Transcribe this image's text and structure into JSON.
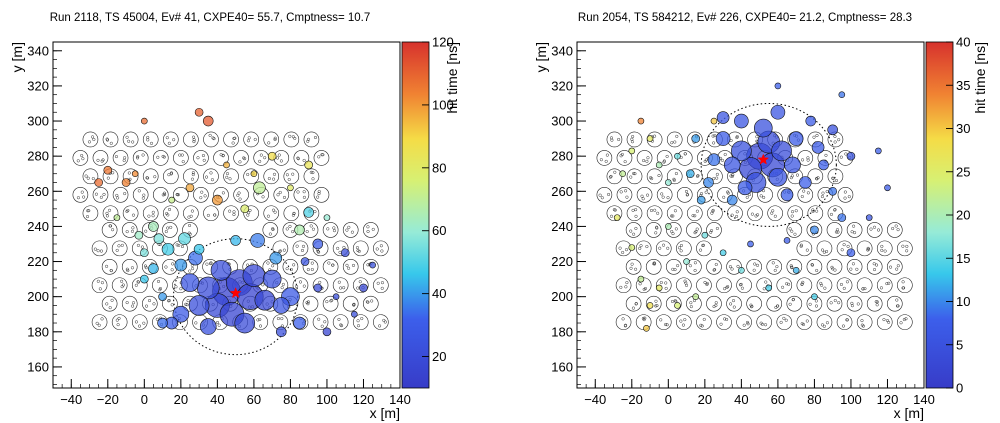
{
  "chart_data": [
    {
      "type": "scatter",
      "title": "Run 2118, TS 45004, Ev# 41, CXPE40= 55.7, Cmptness= 10.7",
      "xlabel": "x [m]",
      "ylabel": "y [m]",
      "xlim": [
        -50,
        140
      ],
      "ylim": [
        148,
        345
      ],
      "xticks": [
        "−40",
        "−20",
        "0",
        "20",
        "40",
        "60",
        "80",
        "100",
        "120",
        "140"
      ],
      "yticks": [
        "160",
        "180",
        "200",
        "220",
        "240",
        "260",
        "280",
        "300",
        "320",
        "340"
      ],
      "colorbar": {
        "label": "hit time [ns]",
        "min": 10,
        "max": 120,
        "ticks": [
          "20",
          "40",
          "60",
          "80",
          "100",
          "120"
        ]
      },
      "core": {
        "x": 50,
        "y": 202
      },
      "ellipse": {
        "cx": 50,
        "cy": 200,
        "rx": 34,
        "ry": 33
      },
      "hits": [
        {
          "x": 45,
          "y": 203,
          "t": 14,
          "s": 14
        },
        {
          "x": 52,
          "y": 208,
          "t": 16,
          "s": 13
        },
        {
          "x": 58,
          "y": 200,
          "t": 15,
          "s": 13
        },
        {
          "x": 40,
          "y": 195,
          "t": 18,
          "s": 12
        },
        {
          "x": 48,
          "y": 190,
          "t": 16,
          "s": 12
        },
        {
          "x": 60,
          "y": 212,
          "t": 18,
          "s": 11
        },
        {
          "x": 35,
          "y": 205,
          "t": 20,
          "s": 11
        },
        {
          "x": 66,
          "y": 198,
          "t": 19,
          "s": 10
        },
        {
          "x": 30,
          "y": 195,
          "t": 22,
          "s": 10
        },
        {
          "x": 55,
          "y": 185,
          "t": 20,
          "s": 10
        },
        {
          "x": 70,
          "y": 210,
          "t": 24,
          "s": 9
        },
        {
          "x": 25,
          "y": 208,
          "t": 26,
          "s": 9
        },
        {
          "x": 42,
          "y": 215,
          "t": 22,
          "s": 10
        },
        {
          "x": 75,
          "y": 195,
          "t": 26,
          "s": 8
        },
        {
          "x": 80,
          "y": 200,
          "t": 28,
          "s": 9
        },
        {
          "x": 20,
          "y": 190,
          "t": 28,
          "s": 8
        },
        {
          "x": 62,
          "y": 232,
          "t": 36,
          "s": 7
        },
        {
          "x": 35,
          "y": 183,
          "t": 24,
          "s": 8
        },
        {
          "x": 15,
          "y": 185,
          "t": 30,
          "s": 6
        },
        {
          "x": 85,
          "y": 185,
          "t": 32,
          "s": 6
        },
        {
          "x": 10,
          "y": 185,
          "t": 34,
          "s": 5
        },
        {
          "x": 28,
          "y": 222,
          "t": 34,
          "s": 7
        },
        {
          "x": 20,
          "y": 218,
          "t": 40,
          "s": 6
        },
        {
          "x": 13,
          "y": 227,
          "t": 48,
          "s": 6
        },
        {
          "x": 5,
          "y": 216,
          "t": 44,
          "s": 5
        },
        {
          "x": 22,
          "y": 233,
          "t": 52,
          "s": 6
        },
        {
          "x": 30,
          "y": 227,
          "t": 46,
          "s": 5
        },
        {
          "x": 63,
          "y": 262,
          "t": 70,
          "s": 6
        },
        {
          "x": 90,
          "y": 248,
          "t": 50,
          "s": 5
        },
        {
          "x": 85,
          "y": 238,
          "t": 66,
          "s": 5
        },
        {
          "x": 72,
          "y": 222,
          "t": 40,
          "s": 6
        },
        {
          "x": 95,
          "y": 230,
          "t": 30,
          "s": 5
        },
        {
          "x": 50,
          "y": 232,
          "t": 44,
          "s": 5
        },
        {
          "x": 8,
          "y": 233,
          "t": 56,
          "s": 5
        },
        {
          "x": -3,
          "y": 235,
          "t": 62,
          "s": 4
        },
        {
          "x": 5,
          "y": 240,
          "t": 64,
          "s": 5
        },
        {
          "x": 0,
          "y": 225,
          "t": 56,
          "s": 4
        },
        {
          "x": 40,
          "y": 255,
          "t": 100,
          "s": 5
        },
        {
          "x": 25,
          "y": 262,
          "t": 98,
          "s": 4
        },
        {
          "x": -25,
          "y": 265,
          "t": 108,
          "s": 4
        },
        {
          "x": -20,
          "y": 272,
          "t": 106,
          "s": 4
        },
        {
          "x": -10,
          "y": 265,
          "t": 104,
          "s": 4
        },
        {
          "x": 35,
          "y": 300,
          "t": 112,
          "s": 5
        },
        {
          "x": 30,
          "y": 305,
          "t": 110,
          "s": 4
        },
        {
          "x": 0,
          "y": 300,
          "t": 108,
          "s": 3
        },
        {
          "x": -5,
          "y": 270,
          "t": 102,
          "s": 3
        },
        {
          "x": 70,
          "y": 280,
          "t": 88,
          "s": 4
        },
        {
          "x": 90,
          "y": 275,
          "t": 84,
          "s": 4
        },
        {
          "x": 110,
          "y": 225,
          "t": 20,
          "s": 4
        },
        {
          "x": 120,
          "y": 205,
          "t": 18,
          "s": 4
        },
        {
          "x": 100,
          "y": 180,
          "t": 16,
          "s": 4
        },
        {
          "x": 115,
          "y": 190,
          "t": 22,
          "s": 3
        },
        {
          "x": 95,
          "y": 205,
          "t": 20,
          "s": 4
        },
        {
          "x": 125,
          "y": 218,
          "t": 24,
          "s": 3
        },
        {
          "x": 105,
          "y": 200,
          "t": 22,
          "s": 3
        },
        {
          "x": 88,
          "y": 220,
          "t": 26,
          "s": 4
        },
        {
          "x": 55,
          "y": 250,
          "t": 78,
          "s": 4
        },
        {
          "x": 15,
          "y": 255,
          "t": 72,
          "s": 3
        },
        {
          "x": -15,
          "y": 245,
          "t": 70,
          "s": 3
        },
        {
          "x": 60,
          "y": 270,
          "t": 90,
          "s": 3
        },
        {
          "x": 45,
          "y": 275,
          "t": 96,
          "s": 3
        },
        {
          "x": 80,
          "y": 262,
          "t": 80,
          "s": 3
        },
        {
          "x": 100,
          "y": 245,
          "t": 60,
          "s": 3
        },
        {
          "x": 0,
          "y": 210,
          "t": 46,
          "s": 4
        },
        {
          "x": 10,
          "y": 200,
          "t": 40,
          "s": 4
        },
        {
          "x": 75,
          "y": 180,
          "t": 22,
          "s": 5
        }
      ]
    },
    {
      "type": "scatter",
      "title": "Run 2054, TS 584212, Ev# 226, CXPE40= 21.2, Cmptness= 28.3",
      "xlabel": "x [m]",
      "ylabel": "y [m]",
      "xlim": [
        -50,
        140
      ],
      "ylim": [
        148,
        345
      ],
      "xticks": [
        "−40",
        "−20",
        "0",
        "20",
        "40",
        "60",
        "80",
        "100",
        "120",
        "140"
      ],
      "yticks": [
        "160",
        "180",
        "200",
        "220",
        "240",
        "260",
        "280",
        "300",
        "320",
        "340"
      ],
      "colorbar": {
        "label": "hit time [ns]",
        "min": 0,
        "max": 40,
        "ticks": [
          "0",
          "5",
          "10",
          "15",
          "20",
          "25",
          "30",
          "35",
          "40"
        ]
      },
      "core": {
        "x": 52,
        "y": 278
      },
      "ellipse": {
        "cx": 55,
        "cy": 275,
        "rx": 37,
        "ry": 35
      },
      "hits": [
        {
          "x": 50,
          "y": 280,
          "t": 2,
          "s": 13
        },
        {
          "x": 57,
          "y": 275,
          "t": 3,
          "s": 12
        },
        {
          "x": 45,
          "y": 273,
          "t": 3,
          "s": 11
        },
        {
          "x": 55,
          "y": 288,
          "t": 4,
          "s": 11
        },
        {
          "x": 62,
          "y": 283,
          "t": 4,
          "s": 10
        },
        {
          "x": 40,
          "y": 283,
          "t": 5,
          "s": 10
        },
        {
          "x": 48,
          "y": 265,
          "t": 5,
          "s": 10
        },
        {
          "x": 60,
          "y": 268,
          "t": 6,
          "s": 9
        },
        {
          "x": 35,
          "y": 275,
          "t": 6,
          "s": 8
        },
        {
          "x": 68,
          "y": 275,
          "t": 6,
          "s": 8
        },
        {
          "x": 52,
          "y": 296,
          "t": 5,
          "s": 9
        },
        {
          "x": 70,
          "y": 290,
          "t": 7,
          "s": 7
        },
        {
          "x": 42,
          "y": 262,
          "t": 7,
          "s": 7
        },
        {
          "x": 30,
          "y": 290,
          "t": 7,
          "s": 7
        },
        {
          "x": 75,
          "y": 265,
          "t": 8,
          "s": 6
        },
        {
          "x": 40,
          "y": 300,
          "t": 6,
          "s": 7
        },
        {
          "x": 60,
          "y": 305,
          "t": 6,
          "s": 7
        },
        {
          "x": 82,
          "y": 285,
          "t": 7,
          "s": 6
        },
        {
          "x": 85,
          "y": 275,
          "t": 8,
          "s": 5
        },
        {
          "x": 25,
          "y": 278,
          "t": 9,
          "s": 6
        },
        {
          "x": 30,
          "y": 302,
          "t": 6,
          "s": 6
        },
        {
          "x": 22,
          "y": 265,
          "t": 10,
          "s": 5
        },
        {
          "x": 78,
          "y": 300,
          "t": 7,
          "s": 5
        },
        {
          "x": 90,
          "y": 295,
          "t": 5,
          "s": 5
        },
        {
          "x": 65,
          "y": 258,
          "t": 8,
          "s": 6
        },
        {
          "x": 35,
          "y": 255,
          "t": 10,
          "s": 5
        },
        {
          "x": 90,
          "y": 260,
          "t": 9,
          "s": 4
        },
        {
          "x": 100,
          "y": 280,
          "t": 6,
          "s": 4
        },
        {
          "x": 95,
          "y": 245,
          "t": 9,
          "s": 4
        },
        {
          "x": 80,
          "y": 238,
          "t": 10,
          "s": 4
        },
        {
          "x": 15,
          "y": 290,
          "t": 11,
          "s": 4
        },
        {
          "x": 12,
          "y": 270,
          "t": 12,
          "s": 4
        },
        {
          "x": 18,
          "y": 255,
          "t": 11,
          "s": 4
        },
        {
          "x": 5,
          "y": 280,
          "t": 16,
          "s": 3
        },
        {
          "x": -5,
          "y": 275,
          "t": 20,
          "s": 3
        },
        {
          "x": -20,
          "y": 283,
          "t": 24,
          "s": 3
        },
        {
          "x": -25,
          "y": 270,
          "t": 22,
          "s": 3
        },
        {
          "x": -15,
          "y": 300,
          "t": 34,
          "s": 3
        },
        {
          "x": -10,
          "y": 290,
          "t": 26,
          "s": 3
        },
        {
          "x": 0,
          "y": 265,
          "t": 18,
          "s": 3
        },
        {
          "x": -28,
          "y": 245,
          "t": 26,
          "s": 3
        },
        {
          "x": -20,
          "y": 228,
          "t": 24,
          "s": 3
        },
        {
          "x": -15,
          "y": 210,
          "t": 22,
          "s": 3
        },
        {
          "x": -10,
          "y": 195,
          "t": 28,
          "s": 3
        },
        {
          "x": 0,
          "y": 240,
          "t": 20,
          "s": 3
        },
        {
          "x": 10,
          "y": 220,
          "t": 18,
          "s": 3
        },
        {
          "x": 20,
          "y": 235,
          "t": 16,
          "s": 3
        },
        {
          "x": 30,
          "y": 225,
          "t": 14,
          "s": 3
        },
        {
          "x": -12,
          "y": 182,
          "t": 30,
          "s": 3
        },
        {
          "x": -5,
          "y": 205,
          "t": 26,
          "s": 3
        },
        {
          "x": 5,
          "y": 195,
          "t": 24,
          "s": 3
        },
        {
          "x": 15,
          "y": 200,
          "t": 22,
          "s": 3
        },
        {
          "x": 40,
          "y": 215,
          "t": 16,
          "s": 3
        },
        {
          "x": 55,
          "y": 205,
          "t": 14,
          "s": 3
        },
        {
          "x": 70,
          "y": 215,
          "t": 12,
          "s": 3
        },
        {
          "x": 80,
          "y": 200,
          "t": 14,
          "s": 3
        },
        {
          "x": 100,
          "y": 225,
          "t": 8,
          "s": 4
        },
        {
          "x": 110,
          "y": 245,
          "t": 6,
          "s": 3
        },
        {
          "x": 120,
          "y": 262,
          "t": 7,
          "s": 3
        },
        {
          "x": 115,
          "y": 283,
          "t": 8,
          "s": 3
        },
        {
          "x": 60,
          "y": 320,
          "t": 8,
          "s": 3
        },
        {
          "x": 95,
          "y": 315,
          "t": 9,
          "s": 3
        },
        {
          "x": 25,
          "y": 300,
          "t": 30,
          "s": 3
        },
        {
          "x": 45,
          "y": 230,
          "t": 8,
          "s": 3
        },
        {
          "x": 65,
          "y": 232,
          "t": 7,
          "s": 3
        }
      ]
    }
  ]
}
